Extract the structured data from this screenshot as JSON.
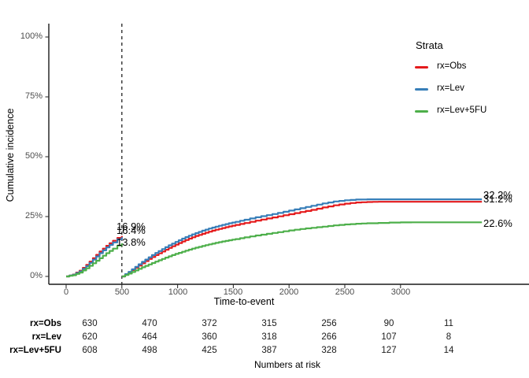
{
  "figure": {
    "y_axis": {
      "title": "Cumulative incidence",
      "tick_labels": [
        "100%",
        "75%",
        "50%",
        "25%",
        "0%"
      ]
    },
    "x_axis": {
      "title": "Time-to-event",
      "tick_labels": [
        "0",
        "500",
        "1000",
        "1500",
        "2000",
        "2500",
        "3000"
      ]
    },
    "legend": {
      "title": "Strata",
      "items": [
        {
          "label": "rx=Obs"
        },
        {
          "label": "rx=Lev"
        },
        {
          "label": "rx=Lev+5FU"
        }
      ]
    },
    "annotations": {
      "landmark": [
        {
          "label": "16.9%"
        },
        {
          "label": "16.4%"
        },
        {
          "label": "13.8%"
        }
      ],
      "end": [
        {
          "label": "32.2%"
        },
        {
          "label": "31.2%"
        },
        {
          "label": "22.6%"
        }
      ]
    },
    "risk_table": {
      "caption": "Numbers at risk",
      "times": [
        0,
        500,
        1000,
        1500,
        2000,
        2500,
        3000
      ],
      "rows": [
        {
          "label": "rx=Obs",
          "values": [
            "630",
            "470",
            "372",
            "315",
            "256",
            "90",
            "11"
          ]
        },
        {
          "label": "rx=Lev",
          "values": [
            "620",
            "464",
            "360",
            "318",
            "266",
            "107",
            "8"
          ]
        },
        {
          "label": "rx=Lev+5FU",
          "values": [
            "608",
            "498",
            "425",
            "387",
            "328",
            "127",
            "14"
          ]
        }
      ]
    }
  },
  "chart_data": {
    "type": "line",
    "subtype": "cumulative-incidence-step-landmark",
    "title": "",
    "xlabel": "Time-to-event",
    "ylabel": "Cumulative incidence",
    "xlim": [
      0,
      3750
    ],
    "ylim_pct": [
      0,
      100
    ],
    "x_ticks": [
      0,
      500,
      1000,
      1500,
      2000,
      2500,
      3000
    ],
    "y_ticks_pct": [
      0,
      25,
      50,
      75,
      100
    ],
    "grid": false,
    "legend_title": "Strata",
    "legend_position": "right",
    "landmark_time": 500,
    "series": [
      {
        "name": "rx=Obs",
        "color": "#E41A1C",
        "landmark_label": "16.9%",
        "end_label": "31.2%",
        "segments": [
          [
            [
              0,
              0
            ],
            [
              60,
              0.8
            ],
            [
              120,
              2.4
            ],
            [
              180,
              4.8
            ],
            [
              240,
              7.6
            ],
            [
              300,
              10.4
            ],
            [
              360,
              12.8
            ],
            [
              420,
              14.9
            ],
            [
              460,
              16.1
            ],
            [
              500,
              16.9
            ]
          ],
          [
            [
              500,
              0
            ],
            [
              560,
              1.7
            ],
            [
              620,
              3.6
            ],
            [
              680,
              5.5
            ],
            [
              740,
              7.3
            ],
            [
              800,
              8.9
            ],
            [
              860,
              10.4
            ],
            [
              920,
              11.9
            ],
            [
              980,
              13.3
            ],
            [
              1040,
              14.6
            ],
            [
              1100,
              15.8
            ],
            [
              1160,
              16.9
            ],
            [
              1220,
              17.8
            ],
            [
              1280,
              18.7
            ],
            [
              1340,
              19.5
            ],
            [
              1400,
              20.2
            ],
            [
              1460,
              20.9
            ],
            [
              1520,
              21.5
            ],
            [
              1600,
              22.3
            ],
            [
              1700,
              23.3
            ],
            [
              1800,
              24.2
            ],
            [
              1900,
              25.1
            ],
            [
              2000,
              26.0
            ],
            [
              2100,
              26.9
            ],
            [
              2200,
              27.8
            ],
            [
              2300,
              28.8
            ],
            [
              2400,
              29.7
            ],
            [
              2500,
              30.4
            ],
            [
              2600,
              30.9
            ],
            [
              2700,
              31.1
            ],
            [
              2800,
              31.2
            ],
            [
              3730,
              31.2
            ]
          ]
        ]
      },
      {
        "name": "rx=Lev",
        "color": "#377EB8",
        "landmark_label": "16.4%",
        "end_label": "32.2%",
        "segments": [
          [
            [
              0,
              0
            ],
            [
              60,
              0.7
            ],
            [
              120,
              2.1
            ],
            [
              180,
              4.3
            ],
            [
              240,
              7.0
            ],
            [
              300,
              9.7
            ],
            [
              360,
              12.1
            ],
            [
              420,
              14.2
            ],
            [
              460,
              15.5
            ],
            [
              500,
              16.4
            ]
          ],
          [
            [
              500,
              0
            ],
            [
              560,
              1.9
            ],
            [
              620,
              4.0
            ],
            [
              680,
              6.1
            ],
            [
              740,
              8.0
            ],
            [
              800,
              9.8
            ],
            [
              860,
              11.4
            ],
            [
              920,
              13.0
            ],
            [
              980,
              14.4
            ],
            [
              1040,
              15.8
            ],
            [
              1100,
              17.0
            ],
            [
              1160,
              18.1
            ],
            [
              1220,
              19.1
            ],
            [
              1280,
              20.0
            ],
            [
              1340,
              20.8
            ],
            [
              1400,
              21.5
            ],
            [
              1460,
              22.2
            ],
            [
              1520,
              22.8
            ],
            [
              1600,
              23.7
            ],
            [
              1700,
              24.7
            ],
            [
              1800,
              25.6
            ],
            [
              1900,
              26.5
            ],
            [
              2000,
              27.5
            ],
            [
              2100,
              28.5
            ],
            [
              2200,
              29.5
            ],
            [
              2300,
              30.5
            ],
            [
              2400,
              31.3
            ],
            [
              2500,
              31.8
            ],
            [
              2600,
              32.1
            ],
            [
              2700,
              32.2
            ],
            [
              3730,
              32.2
            ]
          ]
        ]
      },
      {
        "name": "rx=Lev+5FU",
        "color": "#4DAF4A",
        "landmark_label": "13.8%",
        "end_label": "22.6%",
        "segments": [
          [
            [
              0,
              0
            ],
            [
              60,
              0.5
            ],
            [
              120,
              1.6
            ],
            [
              180,
              3.4
            ],
            [
              240,
              5.5
            ],
            [
              300,
              7.6
            ],
            [
              360,
              9.7
            ],
            [
              420,
              11.6
            ],
            [
              460,
              12.9
            ],
            [
              500,
              13.8
            ]
          ],
          [
            [
              500,
              0
            ],
            [
              560,
              1.2
            ],
            [
              620,
              2.5
            ],
            [
              680,
              3.8
            ],
            [
              740,
              5.0
            ],
            [
              800,
              6.2
            ],
            [
              860,
              7.3
            ],
            [
              920,
              8.4
            ],
            [
              980,
              9.4
            ],
            [
              1040,
              10.3
            ],
            [
              1100,
              11.2
            ],
            [
              1160,
              12.0
            ],
            [
              1220,
              12.7
            ],
            [
              1280,
              13.4
            ],
            [
              1340,
              14.0
            ],
            [
              1400,
              14.6
            ],
            [
              1460,
              15.1
            ],
            [
              1520,
              15.6
            ],
            [
              1600,
              16.3
            ],
            [
              1700,
              17.1
            ],
            [
              1800,
              17.8
            ],
            [
              1900,
              18.5
            ],
            [
              2000,
              19.2
            ],
            [
              2100,
              19.8
            ],
            [
              2200,
              20.3
            ],
            [
              2300,
              20.8
            ],
            [
              2400,
              21.3
            ],
            [
              2500,
              21.7
            ],
            [
              2600,
              22.0
            ],
            [
              2700,
              22.2
            ],
            [
              2900,
              22.5
            ],
            [
              3100,
              22.6
            ],
            [
              3730,
              22.6
            ]
          ]
        ]
      }
    ]
  }
}
